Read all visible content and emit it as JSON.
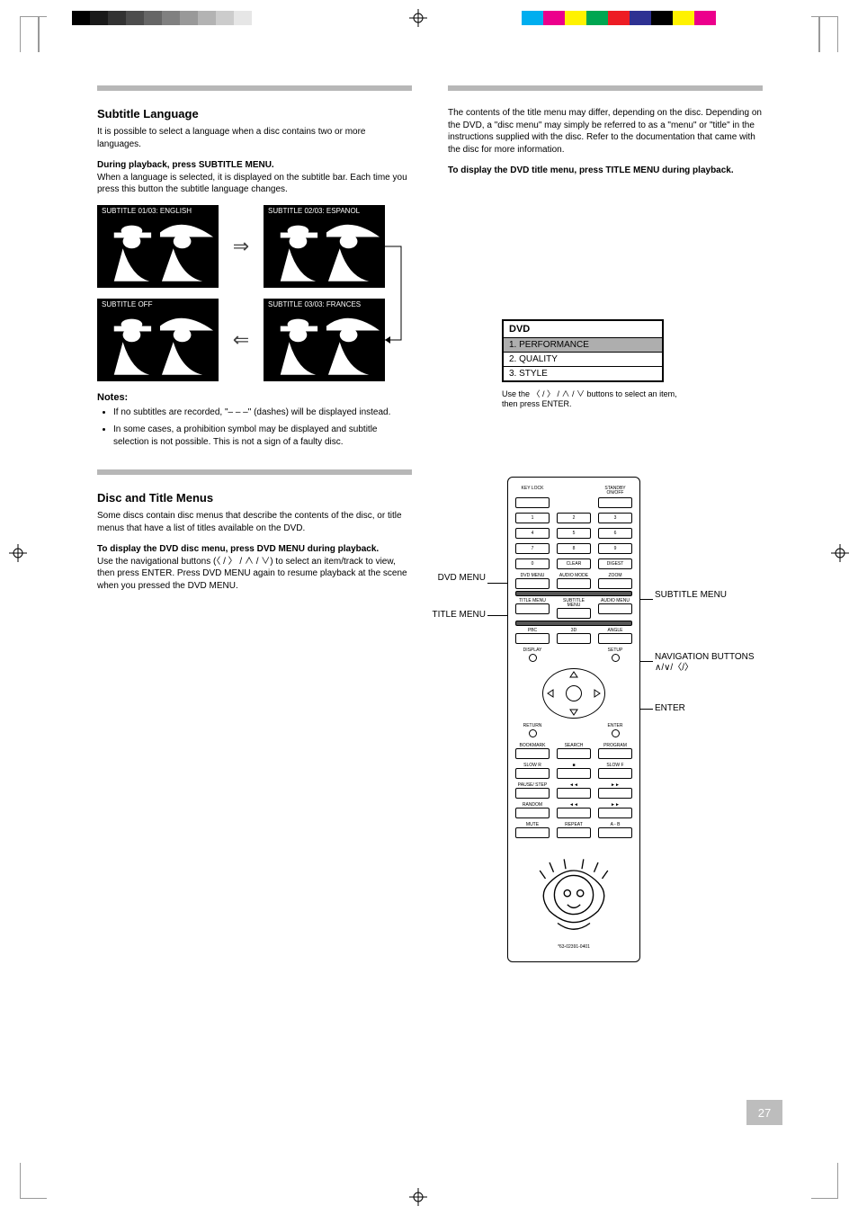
{
  "grayscale_bar": [
    "#000000",
    "#1a1a1a",
    "#333333",
    "#4d4d4d",
    "#666666",
    "#808080",
    "#999999",
    "#b3b3b3",
    "#cccccc",
    "#e6e6e6",
    "#ffffff"
  ],
  "color_bar": [
    "#00aeef",
    "#ec008c",
    "#fff200",
    "#00a651",
    "#ed1c24",
    "#2e3192",
    "#000000",
    "#fff200",
    "#ec008c",
    "#ffffff"
  ],
  "page_number": "27",
  "remote_part_no": "*63-02391-0401",
  "left": {
    "section_title": "Subtitle Language",
    "para1": "It is possible to select a language when a disc contains two or more languages.",
    "step1_bold": "During playback, press SUBTITLE MENU.",
    "step1_body": "When a language is selected, it is displayed on the subtitle bar. Each time you press this button the subtitle language changes.",
    "thumb_labels": {
      "a": "SUBTITLE 01/03: ENGLISH",
      "b": "SUBTITLE 02/03: ESPANOL",
      "c": "SUBTITLE OFF",
      "d": "SUBTITLE 03/03: FRANCES"
    },
    "notes_heading": "Notes:",
    "notes": [
      "If no subtitles are recorded, \"– – –\" (dashes) will be displayed instead.",
      "In some cases, a prohibition symbol may be displayed and subtitle selection is not possible. This is not a sign of a faulty disc."
    ],
    "section2_title": "Disc and Title Menus",
    "para2a": "Some discs contain disc menus that describe the contents of the disc, or title menus that have a list of titles available on the DVD.",
    "step2_bold": "To display the DVD disc menu, press DVD MENU during playback.",
    "step2_body": "Use the navigational buttons (〈 / 〉 / ∧ / ∨) to select an item/track to view, then press ENTER. Press DVD MENU again to resume playback at the scene when you pressed the DVD MENU."
  },
  "right": {
    "para1": "The contents of the title menu may differ, depending on the disc. Depending on the DVD, a \"disc menu\" may simply be referred to as a \"menu\" or \"title\" in the instructions supplied with the disc. Refer to the documentation that came with the disc for more information.",
    "step_bold": "To display the DVD title menu, press TITLE MENU during playback.",
    "dvd_box": {
      "header": "DVD",
      "items": [
        "1. PERFORMANCE",
        "2. QUALITY",
        "3. STYLE"
      ],
      "selected_index": 0
    },
    "caption": "Use the 〈 / 〉 / ∧ / ∨ buttons to select an item, then press ENTER."
  },
  "remote": {
    "row1_labels": [
      "KEY LOCK",
      "STANDBY ON/OFF"
    ],
    "numpad": [
      [
        "1",
        "2",
        "3"
      ],
      [
        "4",
        "5",
        "6"
      ],
      [
        "7",
        "8",
        "9"
      ],
      [
        "0",
        "CLEAR",
        "DIGEST"
      ]
    ],
    "row_a": [
      "DVD MENU",
      "AUDIO MODE",
      "ZOOM"
    ],
    "row_b": [
      "TITLE MENU",
      "SUBTITLE MENU",
      "AUDIO MENU"
    ],
    "row_c": [
      "PBC",
      "3D",
      "ANGLE"
    ],
    "round_row": [
      "DISPLAY",
      "SETUP"
    ],
    "nav_corners": [
      "RETURN",
      "ENTER"
    ],
    "row_d": [
      "BOOKMARK",
      "SEARCH",
      "PROGRAM"
    ],
    "row_e": [
      "SLOW R",
      "■",
      "SLOW F"
    ],
    "row_f": [
      "PAUSE/ STEP",
      "◄◄",
      "►►"
    ],
    "row_g": [
      "RANDOM",
      "◄◄",
      "►►"
    ],
    "row_h": [
      "MUTE",
      "REPEAT",
      "A - B"
    ]
  },
  "callouts": {
    "dvd_menu": "DVD MENU",
    "title_menu": "TITLE MENU",
    "subtitle_menu": "SUBTITLE MENU",
    "nav_buttons": "NAVIGATION BUTTONS ∧/∨/〈/〉",
    "enter": "ENTER"
  }
}
